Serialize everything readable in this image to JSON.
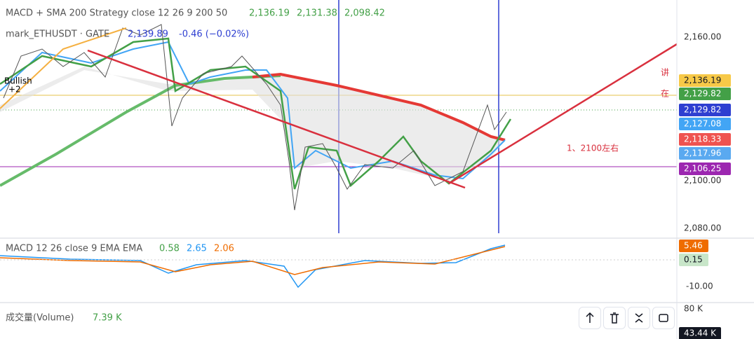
{
  "main_pane": {
    "strategy": {
      "name": "MACD + SMA 200 Strategy close 12 26 9 200 50",
      "values": [
        "2,136.19",
        "2,131.38",
        "2,098.42"
      ]
    },
    "symbol": {
      "name": "mark_ETHUSDT · GATE",
      "price": "2,139.89",
      "change": "-0.46 (−0.02%)"
    },
    "badge": [
      "Bullish",
      "+2"
    ],
    "annotations": [
      "讲",
      "在",
      "1、2100左右"
    ],
    "price_axis": [
      "2,160.00",
      "2,100.00",
      "2,080.00"
    ],
    "price_tags": [
      {
        "label": "2,136.19",
        "color": "#f7c948"
      },
      {
        "label": "2,129.82",
        "color": "#43a047"
      },
      {
        "label": "2,129.82",
        "color": "#2e3fd1"
      },
      {
        "label": "2,127.08",
        "color": "#42a5f5"
      },
      {
        "label": "2,118.33",
        "color": "#ef5350"
      },
      {
        "label": "2,117.96",
        "color": "#5aa9f0"
      },
      {
        "label": "2,106.25",
        "color": "#9c27b0"
      }
    ]
  },
  "macd_pane": {
    "name": "MACD 12 26 close 9 EMA EMA",
    "values": [
      "0.58",
      "2.65",
      "2.06"
    ],
    "axis": [
      "-10.00"
    ],
    "tags": [
      {
        "label": "5.46",
        "color": "#ef6c00"
      },
      {
        "label": "0.15",
        "color": "#c8e6c9"
      }
    ]
  },
  "volume_pane": {
    "name": "成交量(Volume)",
    "value": "7.39 K",
    "axis": [
      "80 K"
    ],
    "tag": "43.44 K"
  }
}
